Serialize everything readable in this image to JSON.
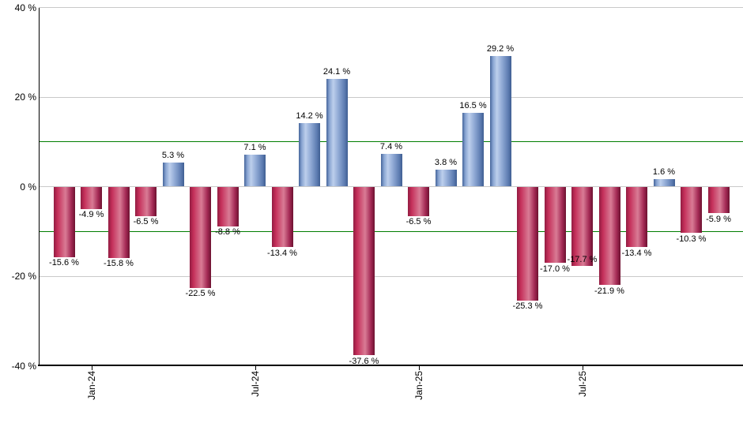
{
  "chart_data": {
    "type": "bar",
    "title": "",
    "unit": "%",
    "values": [
      -15.6,
      -4.9,
      -15.8,
      -6.5,
      5.3,
      -22.5,
      -8.8,
      7.1,
      -13.4,
      14.2,
      24.1,
      -37.6,
      7.4,
      -6.5,
      3.8,
      16.5,
      29.2,
      -25.3,
      -17.0,
      -17.7,
      -21.9,
      -13.4,
      1.6,
      -10.3,
      -5.9
    ],
    "bar_labels": [
      "-15.6 %",
      "-4.9 %",
      "-15.8 %",
      "-6.5 %",
      "5.3 %",
      "-22.5 %",
      "-8.8 %",
      "7.1 %",
      "-13.4 %",
      "14.2 %",
      "24.1 %",
      "-37.6 %",
      "7.4 %",
      "-6.5 %",
      "3.8 %",
      "16.5 %",
      "29.2 %",
      "-25.3 %",
      "-17.0 %",
      "-17.7 %",
      "-21.9 %",
      "-13.4 %",
      "1.6 %",
      "-10.3 %",
      "-5.9 %"
    ],
    "x_ticks": [
      {
        "label": "Jan-24",
        "bar_index": 1
      },
      {
        "label": "Jul-24",
        "bar_index": 7
      },
      {
        "label": "Jan-25",
        "bar_index": 13
      },
      {
        "label": "Jul-25",
        "bar_index": 19
      }
    ],
    "y_ticks": [
      {
        "label": "40 %",
        "value": 40
      },
      {
        "label": "20 %",
        "value": 20
      },
      {
        "label": "0 %",
        "value": 0
      },
      {
        "label": "-20 %",
        "value": -20
      },
      {
        "label": "-40 %",
        "value": -40
      }
    ],
    "ylim": [
      -40,
      40
    ],
    "grid": true,
    "legend": "none",
    "reference_lines": {
      "values": [
        10,
        -10
      ],
      "color": "#007d00"
    },
    "inside_label_indices": [
      19
    ],
    "colors": {
      "positive_bar": "#8fa9d4",
      "negative_bar": "#c5305a",
      "grid_line": "#c9c9c9",
      "reference_line": "#007d00",
      "axis": "#000000",
      "label_text": "#000000",
      "background": "#ffffff"
    }
  }
}
